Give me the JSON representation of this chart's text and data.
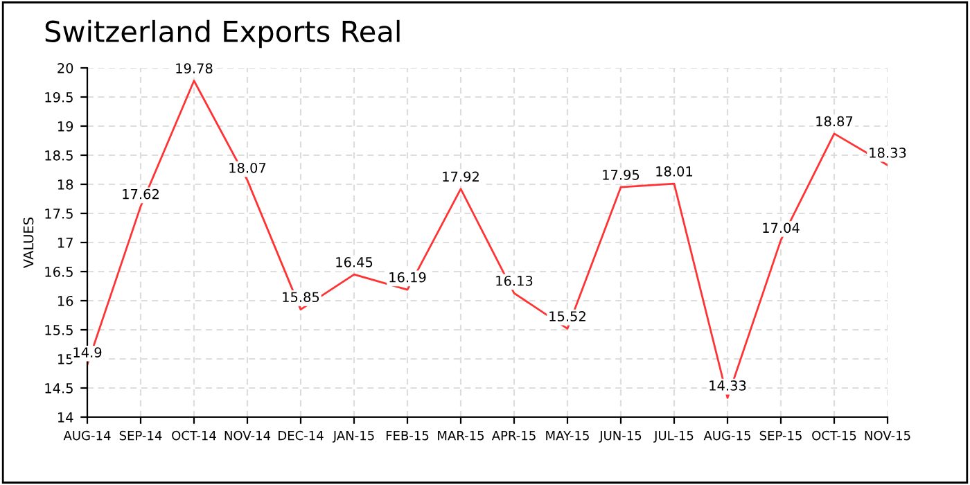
{
  "chart_data": {
    "type": "line",
    "title": "Switzerland Exports Real",
    "ylabel": "VALUES",
    "categories": [
      "AUG-14",
      "SEP-14",
      "OCT-14",
      "NOV-14",
      "DEC-14",
      "JAN-15",
      "FEB-15",
      "MAR-15",
      "APR-15",
      "MAY-15",
      "JUN-15",
      "JUL-15",
      "AUG-15",
      "SEP-15",
      "OCT-15",
      "NOV-15"
    ],
    "series": [
      {
        "color": "#ff3333",
        "values": [
          14.9,
          17.62,
          19.78,
          18.07,
          15.85,
          16.45,
          16.19,
          17.92,
          16.13,
          15.52,
          17.95,
          18.01,
          14.33,
          17.04,
          18.87,
          18.33
        ]
      }
    ],
    "ylim": [
      14,
      20
    ],
    "yticks": [
      14,
      14.5,
      15,
      15.5,
      16,
      16.5,
      17,
      17.5,
      18,
      18.5,
      19,
      19.5,
      20
    ],
    "grid": true,
    "data_labels": true,
    "marker": "none",
    "line_style": "solid"
  }
}
